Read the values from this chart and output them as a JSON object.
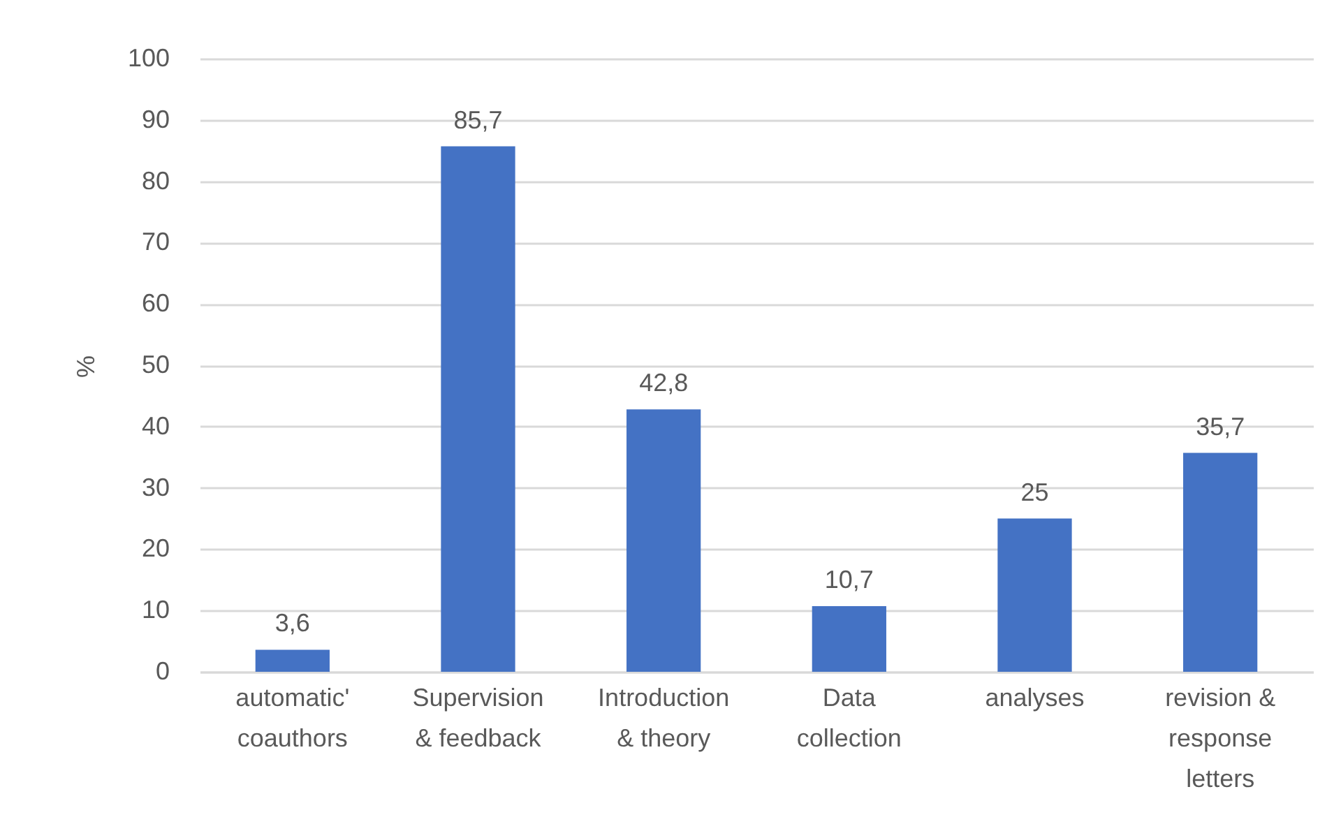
{
  "chart_data": {
    "type": "bar",
    "ylabel": "%",
    "categories": [
      "automatic' coauthors",
      "Supervision & feedback",
      "Introduction & theory",
      "Data collection",
      "analyses",
      "revision & response letters"
    ],
    "values": [
      3.6,
      85.7,
      42.8,
      10.7,
      25,
      35.7
    ],
    "value_labels": [
      "3,6",
      "85,7",
      "42,8",
      "10,7",
      "25",
      "35,7"
    ],
    "color": "#4472c4",
    "ylim": [
      0,
      100
    ],
    "yticks": [
      0,
      10,
      20,
      30,
      40,
      50,
      60,
      70,
      80,
      90,
      100
    ],
    "grid": "y"
  }
}
